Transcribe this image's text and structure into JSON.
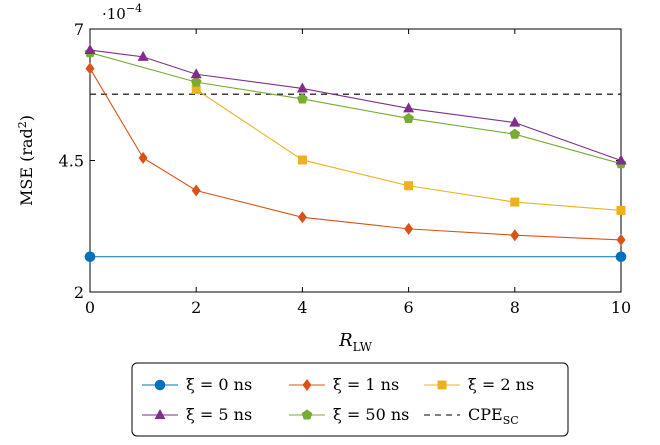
{
  "chart_data": {
    "type": "line",
    "xlabel_main": "R",
    "xlabel_sub": "LW",
    "ylabel_main": "MSE (rad",
    "ylabel_sup": "2",
    "ylabel_end": ")",
    "y_multiplier_base": "·10",
    "y_multiplier_exp": "−4",
    "xlim": [
      0,
      10
    ],
    "ylim": [
      2,
      7
    ],
    "x_ticks": [
      0,
      2,
      4,
      6,
      8,
      10
    ],
    "x_tick_labels": [
      "0",
      "2",
      "4",
      "6",
      "8",
      "10"
    ],
    "y_ticks": [
      2,
      4.5,
      7
    ],
    "y_tick_labels": [
      "2",
      "4.5",
      "7"
    ],
    "grid": false,
    "legend_position": "bottom-center",
    "series": [
      {
        "name": "ξ = 0 ns",
        "color": "#0072BD",
        "marker": "circle",
        "dashed": false,
        "x": [
          0,
          10
        ],
        "y": [
          2.67,
          2.67
        ]
      },
      {
        "name": "ξ = 1 ns",
        "color": "#D95319",
        "marker": "diamond",
        "dashed": false,
        "x": [
          0,
          1,
          2,
          4,
          6,
          8,
          10
        ],
        "y": [
          6.25,
          4.55,
          3.93,
          3.42,
          3.2,
          3.08,
          2.99
        ]
      },
      {
        "name": "ξ = 2 ns",
        "color": "#EDB120",
        "marker": "square",
        "dashed": false,
        "x": [
          2,
          4,
          6,
          8,
          10
        ],
        "y": [
          5.85,
          4.51,
          4.02,
          3.71,
          3.55
        ]
      },
      {
        "name": "ξ = 5 ns",
        "color": "#7E2F8E",
        "marker": "triangle",
        "dashed": false,
        "x": [
          0,
          1,
          2,
          4,
          6,
          8,
          10
        ],
        "y": [
          6.6,
          6.47,
          6.14,
          5.87,
          5.49,
          5.22,
          4.5
        ]
      },
      {
        "name": "ξ = 50 ns",
        "color": "#77AC30",
        "marker": "pentagon",
        "dashed": false,
        "x": [
          0,
          2,
          4,
          6,
          8,
          10
        ],
        "y": [
          6.55,
          5.99,
          5.67,
          5.3,
          5.0,
          4.44
        ]
      },
      {
        "name": "CPE",
        "name_sub": "SC",
        "color": "#000000",
        "marker": "none",
        "dashed": true,
        "x": [
          0,
          10
        ],
        "y": [
          5.76,
          5.76
        ]
      }
    ]
  }
}
